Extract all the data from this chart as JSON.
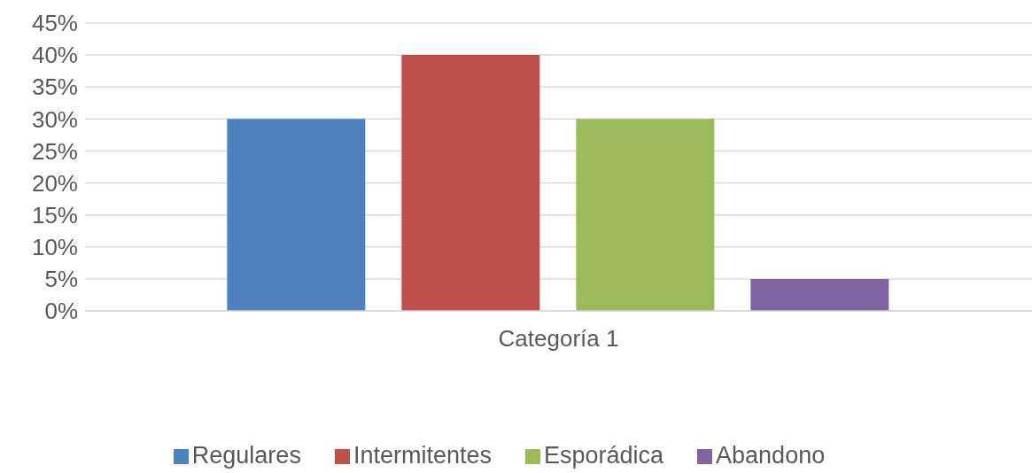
{
  "chart_data": {
    "type": "bar",
    "categories": [
      "Categoría 1"
    ],
    "series": [
      {
        "name": "Regulares",
        "color": "#4f81bd",
        "values": [
          30
        ]
      },
      {
        "name": "Intermitentes",
        "color": "#c0504d",
        "values": [
          40
        ]
      },
      {
        "name": "Esporádica",
        "color": "#9bbb59",
        "values": [
          30
        ]
      },
      {
        "name": "Abandono",
        "color": "#8064a2",
        "values": [
          5
        ]
      }
    ],
    "ylim": [
      0,
      45
    ],
    "yticks": [
      {
        "value": 0,
        "label": "0%"
      },
      {
        "value": 5,
        "label": "5%"
      },
      {
        "value": 10,
        "label": "10%"
      },
      {
        "value": 15,
        "label": "15%"
      },
      {
        "value": 20,
        "label": "20%"
      },
      {
        "value": 25,
        "label": "25%"
      },
      {
        "value": 30,
        "label": "30%"
      },
      {
        "value": 35,
        "label": "35%"
      },
      {
        "value": 40,
        "label": "40%"
      },
      {
        "value": 45,
        "label": "45%"
      }
    ],
    "grid": "y",
    "legend": "bottom"
  }
}
